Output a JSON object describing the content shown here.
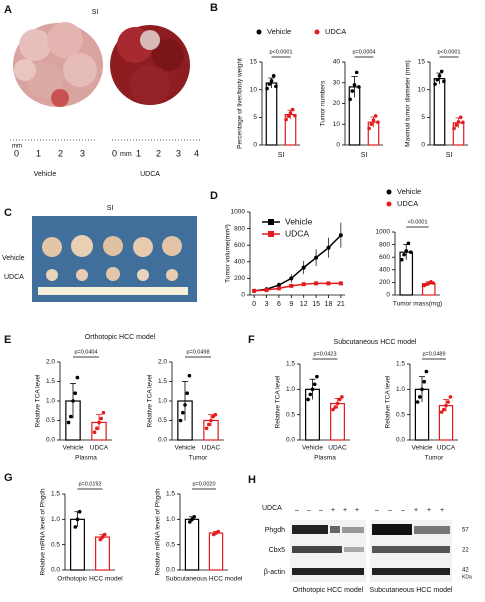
{
  "figure": {
    "panels": [
      "A",
      "B",
      "C",
      "D",
      "E",
      "F",
      "G",
      "H"
    ],
    "a": {
      "title": "SI",
      "labels": [
        "Vehicle",
        "UDCA"
      ],
      "ruler1": [
        "mm",
        "0",
        "1",
        "2",
        "3"
      ],
      "ruler2": [
        "0",
        "mm",
        "1",
        "2",
        "3",
        "4"
      ]
    },
    "c": {
      "title": "SI",
      "rows": [
        "Vehicle",
        "UDCA"
      ]
    },
    "h": {
      "treatment": "UDCA",
      "signs": [
        "–",
        "–",
        "–",
        "+",
        "+",
        "+",
        "–",
        "–",
        "–",
        "+",
        "+",
        "+"
      ],
      "proteins": [
        "Phgdh",
        "Cbx5",
        "β-actin"
      ],
      "sizes": [
        "57",
        "22",
        "42"
      ],
      "unit": "KDa",
      "models": [
        "Orthotopic HCC model",
        "Subcutaneous HCC model"
      ]
    }
  },
  "chart_data": [
    {
      "type": "bar",
      "ylabel": "Percentage of liver/body weight",
      "categories": [
        "SI"
      ],
      "legend": true,
      "annotation": "p<0.0001",
      "ylim": [
        0,
        15
      ],
      "yticks": [
        0,
        5,
        10,
        15
      ],
      "series": [
        {
          "name": "Vehicle",
          "color": "#000000",
          "values": [
            11.2
          ],
          "errors": [
            0.9
          ],
          "points": [
            [
              10.2,
              11.0,
              11.6,
              12.5,
              10.6
            ]
          ]
        },
        {
          "name": "UDCA",
          "color": "#e41a1c",
          "values": [
            5.5
          ],
          "errors": [
            0.8
          ],
          "points": [
            [
              4.6,
              5.2,
              5.8,
              6.4,
              5.3
            ]
          ]
        }
      ]
    },
    {
      "type": "bar",
      "ylabel": "Tumor numbers",
      "categories": [
        "SI"
      ],
      "annotation": "p=0.0004",
      "ylim": [
        0,
        40
      ],
      "yticks": [
        0,
        10,
        20,
        30,
        40
      ],
      "series": [
        {
          "name": "Vehicle",
          "color": "#000000",
          "values": [
            28
          ],
          "errors": [
            5
          ],
          "points": [
            [
              22,
              26,
              29,
              35,
              28
            ]
          ]
        },
        {
          "name": "UDCA",
          "color": "#e41a1c",
          "values": [
            11
          ],
          "errors": [
            2.5
          ],
          "points": [
            [
              8,
              10,
              12,
              14,
              11
            ]
          ]
        }
      ]
    },
    {
      "type": "bar",
      "ylabel": "Maximal tumor diameter (mm)",
      "categories": [
        "SI"
      ],
      "annotation": "p<0.0001",
      "ylim": [
        0,
        15
      ],
      "yticks": [
        0,
        5,
        10,
        15
      ],
      "series": [
        {
          "name": "Vehicle",
          "color": "#000000",
          "values": [
            12
          ],
          "errors": [
            1
          ],
          "points": [
            [
              11,
              11.8,
              12.5,
              13.3,
              11.5
            ]
          ]
        },
        {
          "name": "UDCA",
          "color": "#e41a1c",
          "values": [
            4
          ],
          "errors": [
            0.9
          ],
          "points": [
            [
              3,
              3.6,
              4.2,
              5,
              4.1
            ]
          ]
        }
      ]
    },
    {
      "type": "line",
      "ylabel": "Tumor volume(mm³)",
      "legend": true,
      "x": [
        0,
        3,
        6,
        9,
        12,
        15,
        18,
        21
      ],
      "xlim": [
        -1,
        22
      ],
      "xticks": [
        0,
        3,
        6,
        9,
        12,
        15,
        18,
        21
      ],
      "ylim": [
        0,
        1000
      ],
      "yticks": [
        0,
        200,
        400,
        600,
        800,
        1000
      ],
      "series": [
        {
          "name": "Vehicle",
          "color": "#000000",
          "values": [
            50,
            70,
            120,
            200,
            330,
            450,
            570,
            720
          ],
          "errors": [
            10,
            15,
            30,
            50,
            80,
            100,
            120,
            150
          ]
        },
        {
          "name": "UDCA",
          "color": "#e41a1c",
          "values": [
            50,
            60,
            80,
            110,
            130,
            140,
            140,
            140
          ],
          "errors": [
            5,
            8,
            10,
            15,
            15,
            15,
            15,
            15
          ]
        }
      ]
    },
    {
      "type": "bar",
      "xlabel": "Tumor mass(mg)",
      "legend": true,
      "annotation": "<0.0001",
      "ylim": [
        0,
        1000
      ],
      "yticks": [
        0,
        200,
        400,
        600,
        800,
        1000
      ],
      "series": [
        {
          "name": "Vehicle",
          "color": "#000000",
          "values": [
            680
          ],
          "errors": [
            120
          ],
          "points": [
            [
              560,
              640,
              700,
              820,
              680
            ]
          ]
        },
        {
          "name": "UDCA",
          "color": "#e41a1c",
          "values": [
            180
          ],
          "errors": [
            30
          ],
          "points": [
            [
              150,
              170,
              185,
              210,
              190
            ]
          ]
        }
      ]
    },
    {
      "type": "bar",
      "title": "Orthotopic HCC model",
      "ylabel": "Relative TCA level",
      "xlabel": "Plasma",
      "annotation": "p=0.0404",
      "categories": [
        "Vehicle",
        "UDCA"
      ],
      "colors": [
        "#000000",
        "#e41a1c"
      ],
      "values": [
        1.0,
        0.45
      ],
      "errors": [
        0.45,
        0.2
      ],
      "points": [
        [
          0.45,
          0.6,
          1.0,
          1.2,
          1.6
        ],
        [
          0.2,
          0.3,
          0.45,
          0.55,
          0.7
        ]
      ],
      "ylim": [
        0,
        2
      ],
      "yticks": [
        {
          "value": 0,
          "label": "0.0"
        },
        0.5,
        {
          "value": 1,
          "label": "1.0"
        },
        1.5,
        {
          "value": 2,
          "label": "2.0"
        }
      ]
    },
    {
      "type": "bar",
      "ylabel": "Relative TCA level",
      "xlabel": "Tumor",
      "annotation": "p=0.0498",
      "categories": [
        "Vehicle",
        "UDAC"
      ],
      "colors": [
        "#000000",
        "#e41a1c"
      ],
      "values": [
        1.0,
        0.5
      ],
      "errors": [
        0.5,
        0.15
      ],
      "points": [
        [
          0.5,
          0.7,
          0.9,
          1.2,
          1.65
        ],
        [
          0.3,
          0.4,
          0.5,
          0.6,
          0.65
        ]
      ],
      "ylim": [
        0,
        2
      ],
      "yticks": [
        {
          "value": 0,
          "label": "0.0"
        },
        0.5,
        {
          "value": 1,
          "label": "1.0"
        },
        1.5,
        {
          "value": 2,
          "label": "2.0"
        }
      ]
    },
    {
      "type": "bar",
      "title": "Subcutaneous HCC model",
      "ylabel": "Relative TCA level",
      "xlabel": "Plasma",
      "annotation": "p=0.0423",
      "categories": [
        "Vehicle",
        "UDAC"
      ],
      "colors": [
        "#000000",
        "#e41a1c"
      ],
      "values": [
        1.0,
        0.72
      ],
      "errors": [
        0.2,
        0.1
      ],
      "points": [
        [
          0.8,
          0.9,
          1.0,
          1.1,
          1.25
        ],
        [
          0.6,
          0.65,
          0.72,
          0.8,
          0.85
        ]
      ],
      "ylim": [
        0,
        1.5
      ],
      "yticks": [
        {
          "value": 0,
          "label": "0.0"
        },
        0.5,
        {
          "value": 1,
          "label": "1.0"
        },
        1.5
      ]
    },
    {
      "type": "bar",
      "ylabel": "Relative TCA level",
      "xlabel": "Tumor",
      "annotation": "p=0.0489",
      "categories": [
        "Vehicle",
        "UDCA"
      ],
      "colors": [
        "#000000",
        "#e41a1c"
      ],
      "values": [
        1.0,
        0.68
      ],
      "errors": [
        0.25,
        0.12
      ],
      "points": [
        [
          0.75,
          0.85,
          1.0,
          1.15,
          1.35
        ],
        [
          0.55,
          0.6,
          0.68,
          0.75,
          0.85
        ]
      ],
      "ylim": [
        0,
        1.5
      ],
      "yticks": [
        {
          "value": 0,
          "label": "0.0"
        },
        0.5,
        {
          "value": 1,
          "label": "1.0"
        },
        1.5
      ]
    },
    {
      "type": "bar",
      "ylabel": "Relative mRNA level of Phgdh",
      "xlabel": "Orthotopic HCC model",
      "annotation": "p=0.0192",
      "colors": [
        "#000000",
        "#e41a1c"
      ],
      "values": [
        1.0,
        0.65
      ],
      "errors": [
        0.15,
        0.05
      ],
      "points": [
        [
          0.85,
          1.0,
          1.15
        ],
        [
          0.6,
          0.65,
          0.7
        ]
      ],
      "ylim": [
        0,
        1.5
      ],
      "yticks": [
        {
          "value": 0,
          "label": "0.0"
        },
        0.5,
        {
          "value": 1,
          "label": "1.0"
        },
        1.5
      ]
    },
    {
      "type": "bar",
      "ylabel": "Relative mRNA level of Phgdh",
      "xlabel": "Subcutaneous HCC model",
      "annotation": "p=0.0020",
      "colors": [
        "#000000",
        "#e41a1c"
      ],
      "values": [
        1.0,
        0.73
      ],
      "errors": [
        0.05,
        0.03
      ],
      "points": [
        [
          0.95,
          1.0,
          1.05
        ],
        [
          0.7,
          0.73,
          0.76
        ]
      ],
      "ylim": [
        0,
        1.5
      ],
      "yticks": [
        {
          "value": 0,
          "label": "0.0"
        },
        0.5,
        {
          "value": 1,
          "label": "1.0"
        },
        1.5
      ]
    }
  ]
}
